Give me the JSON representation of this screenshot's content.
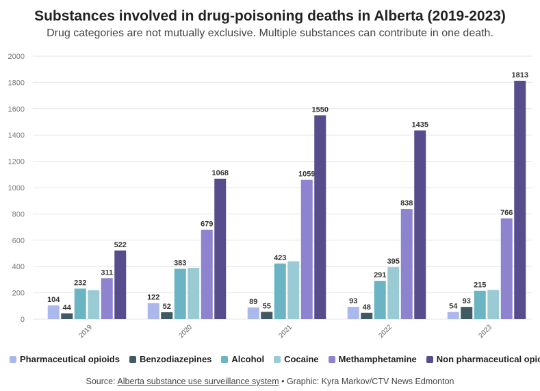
{
  "title": "Substances involved in drug-poisoning deaths in Alberta (2019-2023)",
  "subtitle": "Drug categories are not mutually exclusive. Multiple substances can contribute in one death.",
  "source": {
    "prefix": "Source: ",
    "link_text": "Alberta substance use surveillance system",
    "suffix": " • Graphic: Kyra Markov/CTV News Edmonton"
  },
  "chart_data": {
    "type": "bar",
    "categories": [
      "2019",
      "2020",
      "2021",
      "2022",
      "2023"
    ],
    "ylim": [
      0,
      2000
    ],
    "yticks": [
      0,
      200,
      400,
      600,
      800,
      1000,
      1200,
      1400,
      1600,
      1800,
      2000
    ],
    "grid": true,
    "legend_position": "bottom",
    "series": [
      {
        "name": "Pharmaceutical opioids",
        "color": "#aab8ee",
        "values": [
          104,
          122,
          89,
          93,
          54
        ],
        "labeled": [
          true,
          true,
          true,
          true,
          true
        ]
      },
      {
        "name": "Benzodiazepines",
        "color": "#3f5a63",
        "values": [
          44,
          52,
          55,
          48,
          93
        ],
        "labeled": [
          true,
          true,
          true,
          true,
          true
        ]
      },
      {
        "name": "Alcohol",
        "color": "#6ab4c4",
        "values": [
          232,
          383,
          423,
          291,
          215
        ],
        "labeled": [
          true,
          true,
          true,
          true,
          true
        ]
      },
      {
        "name": "Cocaine",
        "color": "#9acbd4",
        "values": [
          220,
          390,
          440,
          395,
          222
        ],
        "labeled": [
          false,
          false,
          false,
          true,
          false
        ]
      },
      {
        "name": "Methamphetamine",
        "color": "#8e83cf",
        "values": [
          311,
          679,
          1059,
          838,
          766
        ],
        "labeled": [
          true,
          true,
          true,
          true,
          true
        ]
      },
      {
        "name": "Non pharmaceutical opioids",
        "color": "#584d8c",
        "values": [
          522,
          1068,
          1550,
          1435,
          1813
        ],
        "labeled": [
          true,
          true,
          true,
          true,
          true
        ]
      }
    ]
  }
}
